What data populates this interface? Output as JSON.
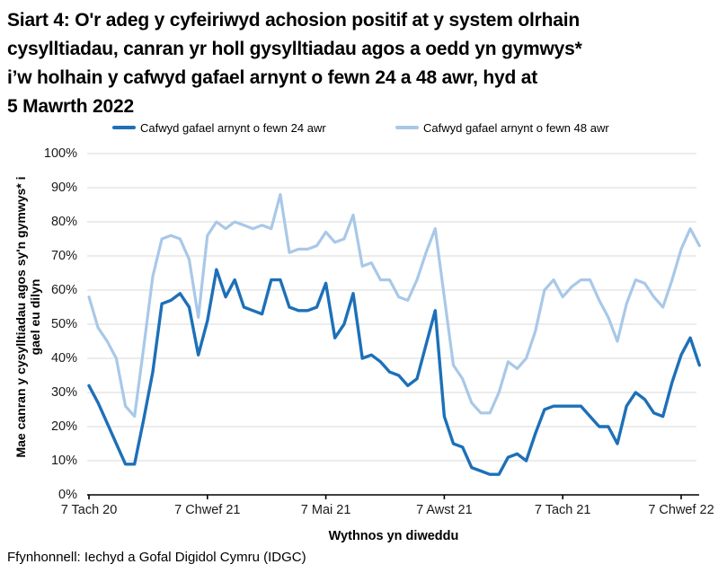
{
  "title_lines": [
    "Siart 4: O'r adeg y cyfeiriwyd achosion positif at y system olrhain",
    "cysylltiadau, canran yr holl gysylltiadau agos a oedd yn gymwys*",
    "i’w holhain y cafwyd gafael arnynt o fewn 24 a 48 awr, hyd at",
    "5 Mawrth 2022"
  ],
  "legend": {
    "items": [
      {
        "label": "Cafwyd gafael arnynt o fewn 24 awr",
        "color": "#1d70b8"
      },
      {
        "label": "Cafwyd gafael arnynt o fewn 48 awr",
        "color": "#a9c8e8"
      }
    ]
  },
  "source": "Ffynhonnell: Iechyd a Gofal Digidol Cymru (IDGC)",
  "colors": {
    "accent_dark": "#1d70b8",
    "accent_light": "#a9c8e8",
    "gridline": "#d9d9d9",
    "axis": "#000000"
  },
  "chart_data": {
    "type": "line",
    "title": "Siart 4: O'r adeg y cyfeiriwyd achosion positif at y system olrhain cysylltiadau, canran yr holl gysylltiadau agos a oedd yn gymwys* i’w holhain y cafwyd gafael arnynt o fewn 24 a 48 awr, hyd at 5 Mawrth 2022",
    "xlabel": "Wythnos yn diweddu",
    "ylabel": "Mae canran y cysylltiadau agos sy'n gymwys* i gael eu dilyn",
    "ylabel_lines": [
      "Mae canran y cysylltiadau agos sy'n gymwys* i",
      "gael eu dilyn"
    ],
    "ylim": [
      0,
      100
    ],
    "y_ticks": [
      "0%",
      "10%",
      "20%",
      "30%",
      "40%",
      "50%",
      "60%",
      "70%",
      "80%",
      "90%",
      "100%"
    ],
    "grid": "horizontal",
    "legend_position": "top",
    "x_ticks": [
      {
        "label": "7 Tach 20",
        "week_index": 0
      },
      {
        "label": "7 Chwef 21",
        "week_index": 13
      },
      {
        "label": "7 Mai 21",
        "week_index": 26
      },
      {
        "label": "7 Awst 21",
        "week_index": 39
      },
      {
        "label": "7 Tach 21",
        "week_index": 52
      },
      {
        "label": "7 Chwef 22",
        "week_index": 65
      }
    ],
    "series": [
      {
        "name": "Cafwyd gafael arnynt o fewn 24 awr",
        "color": "#1d70b8",
        "values": [
          32,
          27,
          21,
          15,
          9,
          9,
          22,
          36,
          56,
          57,
          59,
          55,
          41,
          51,
          66,
          58,
          63,
          55,
          54,
          53,
          63,
          63,
          55,
          54,
          54,
          55,
          62,
          46,
          50,
          59,
          40,
          41,
          39,
          36,
          35,
          32,
          34,
          44,
          54,
          23,
          15,
          14,
          8,
          7,
          6,
          6,
          11,
          12,
          10,
          18,
          25,
          26,
          26,
          26,
          26,
          23,
          20,
          20,
          15,
          26,
          30,
          28,
          24,
          23,
          33,
          41,
          46,
          38
        ]
      },
      {
        "name": "Cafwyd gafael arnynt o fewn 48 awr",
        "color": "#a9c8e8",
        "values": [
          58,
          49,
          45,
          40,
          26,
          23,
          43,
          64,
          75,
          76,
          75,
          69,
          52,
          76,
          80,
          78,
          80,
          79,
          78,
          79,
          78,
          88,
          71,
          72,
          72,
          73,
          77,
          74,
          75,
          82,
          67,
          68,
          63,
          63,
          58,
          57,
          63,
          71,
          78,
          58,
          38,
          34,
          27,
          24,
          24,
          30,
          39,
          37,
          40,
          48,
          60,
          63,
          58,
          61,
          63,
          63,
          57,
          52,
          45,
          56,
          63,
          62,
          58,
          55,
          63,
          72,
          78,
          73
        ]
      }
    ]
  }
}
